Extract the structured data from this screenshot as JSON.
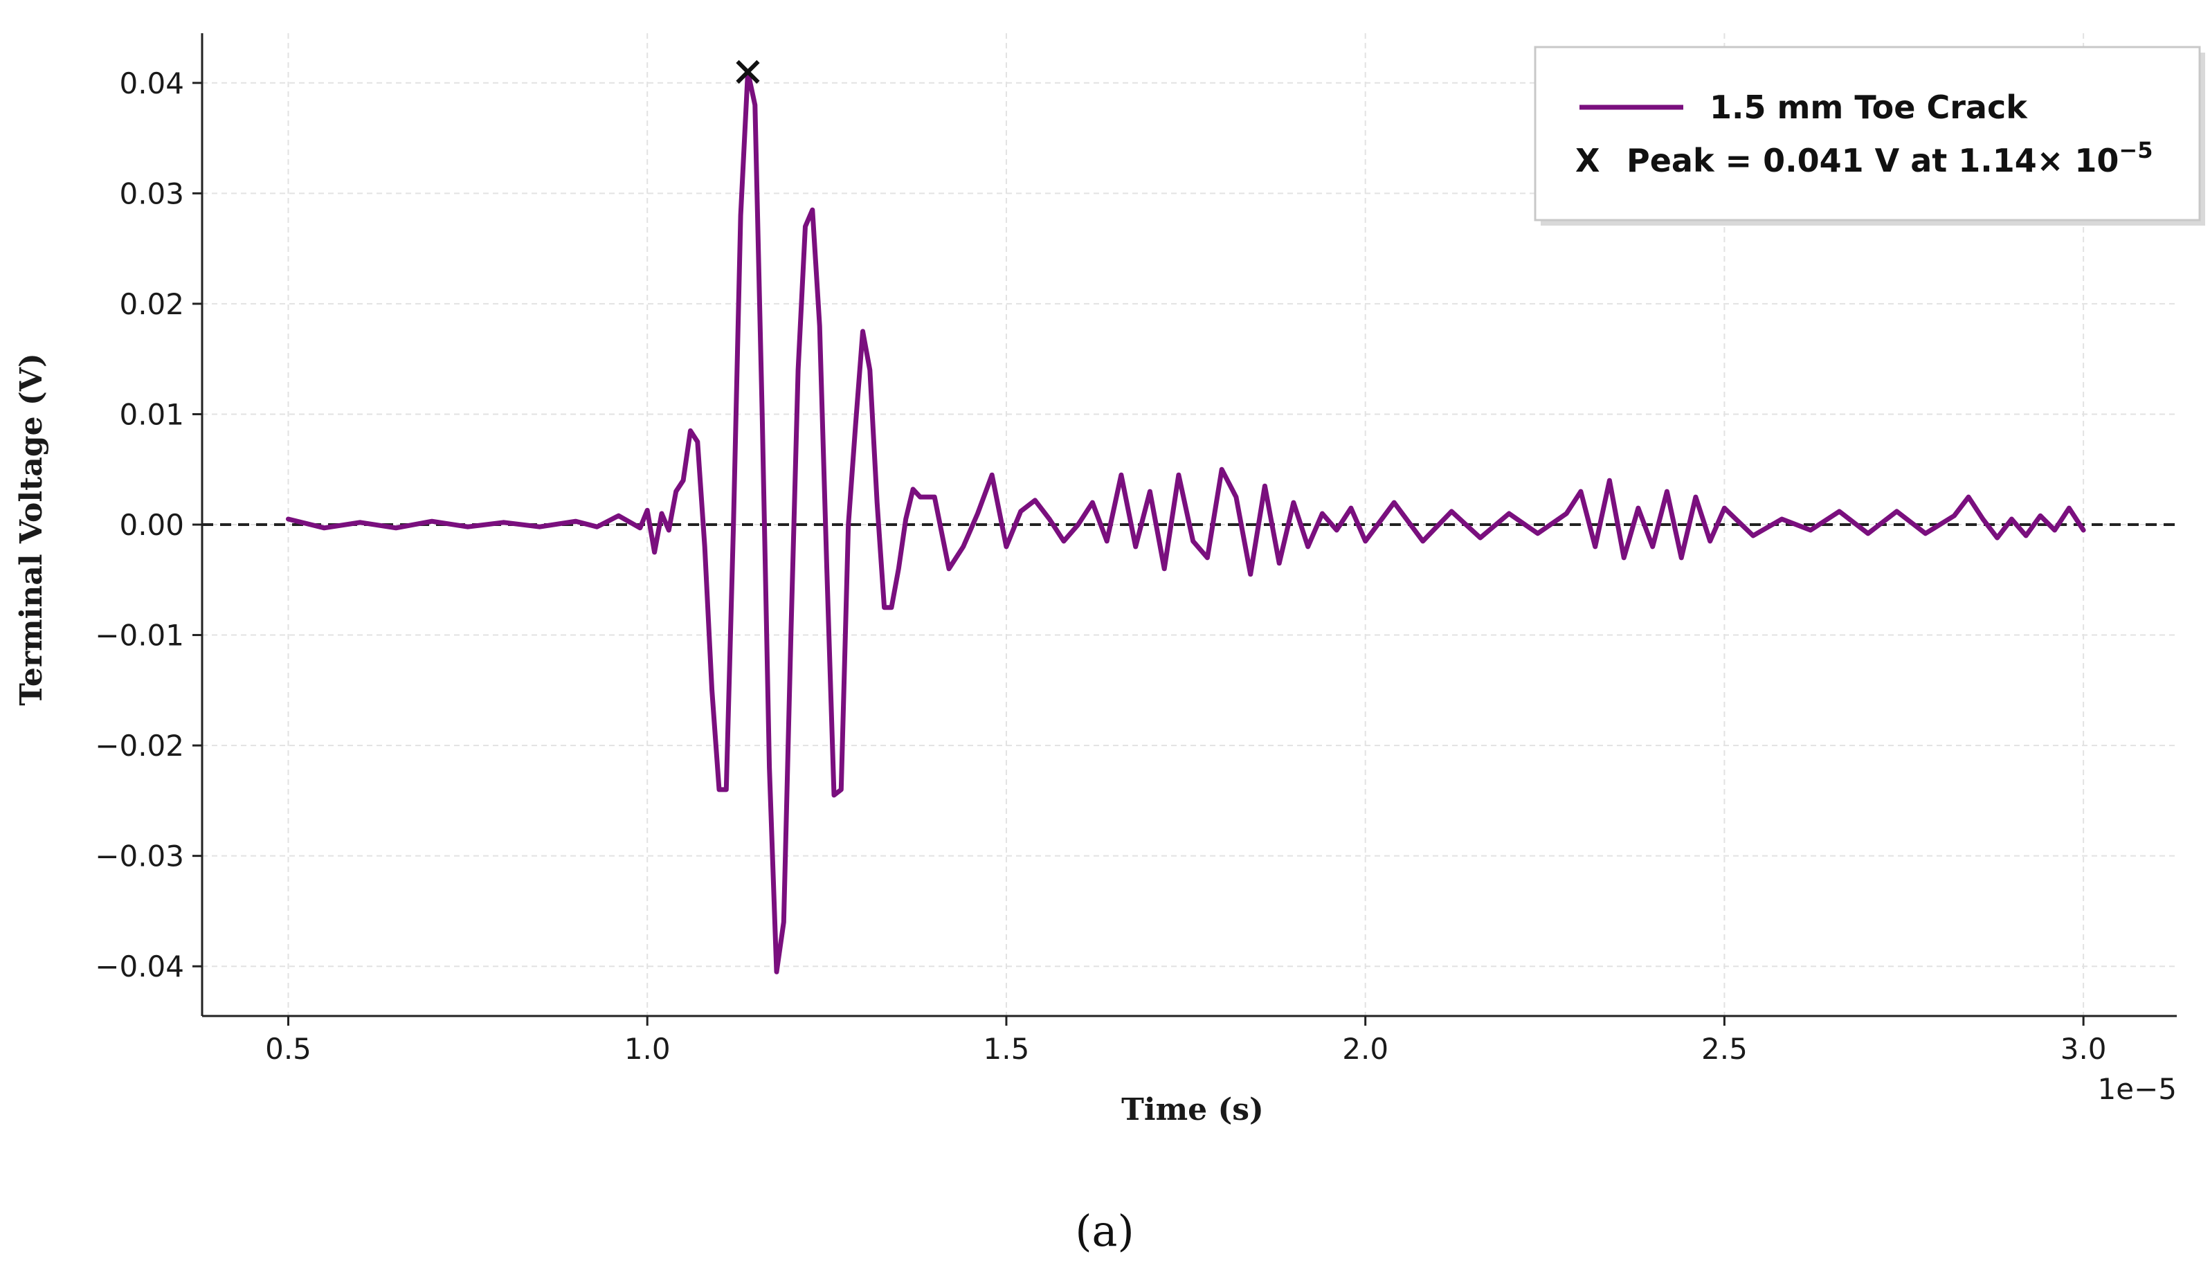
{
  "caption": "(a)",
  "chart_data": {
    "type": "line",
    "title": "",
    "xlabel": "Time (s)",
    "ylabel": "Terminal Voltage (V)",
    "x_offset_label": "1e−5",
    "x_scale": 1e-05,
    "xlim": [
      0.38,
      3.13
    ],
    "ylim": [
      -0.0445,
      0.0445
    ],
    "xticks": [
      0.5,
      1.0,
      1.5,
      2.0,
      2.5,
      3.0
    ],
    "xtick_labels": [
      "0.5",
      "1.0",
      "1.5",
      "2.0",
      "2.5",
      "3.0"
    ],
    "yticks": [
      0.04,
      0.03,
      0.02,
      0.01,
      0.0,
      -0.01,
      -0.02,
      -0.03,
      -0.04
    ],
    "ytick_labels": [
      "0.04",
      "0.03",
      "0.02",
      "0.01",
      "0.00",
      "−0.01",
      "−0.02",
      "−0.03",
      "−0.04"
    ],
    "grid": true,
    "legend_position": "top-right",
    "zero_line": {
      "y": 0,
      "style": "dashed",
      "color": "#222222"
    },
    "colors": {
      "series": "#7a0f7e",
      "marker": "#111111"
    },
    "series": [
      {
        "name": "1.5 mm Toe Crack",
        "x": [
          0.5,
          0.55,
          0.6,
          0.65,
          0.7,
          0.75,
          0.8,
          0.85,
          0.9,
          0.93,
          0.96,
          0.99,
          1.0,
          1.01,
          1.02,
          1.03,
          1.04,
          1.05,
          1.06,
          1.07,
          1.08,
          1.09,
          1.1,
          1.11,
          1.12,
          1.13,
          1.14,
          1.15,
          1.16,
          1.17,
          1.18,
          1.19,
          1.2,
          1.21,
          1.22,
          1.23,
          1.24,
          1.25,
          1.26,
          1.27,
          1.28,
          1.29,
          1.3,
          1.31,
          1.32,
          1.33,
          1.34,
          1.35,
          1.36,
          1.37,
          1.38,
          1.4,
          1.42,
          1.44,
          1.46,
          1.48,
          1.5,
          1.52,
          1.54,
          1.56,
          1.58,
          1.6,
          1.62,
          1.64,
          1.66,
          1.68,
          1.7,
          1.72,
          1.74,
          1.76,
          1.78,
          1.8,
          1.82,
          1.84,
          1.86,
          1.88,
          1.9,
          1.92,
          1.94,
          1.96,
          1.98,
          2.0,
          2.04,
          2.08,
          2.12,
          2.16,
          2.2,
          2.24,
          2.28,
          2.3,
          2.32,
          2.34,
          2.36,
          2.38,
          2.4,
          2.42,
          2.44,
          2.46,
          2.48,
          2.5,
          2.54,
          2.58,
          2.62,
          2.66,
          2.7,
          2.74,
          2.78,
          2.82,
          2.84,
          2.86,
          2.88,
          2.9,
          2.92,
          2.94,
          2.96,
          2.98,
          3.0
        ],
        "values": [
          0.0005,
          -0.0003,
          0.0002,
          -0.0003,
          0.0003,
          -0.0002,
          0.0002,
          -0.0002,
          0.0003,
          -0.0002,
          0.0008,
          -0.0003,
          0.0013,
          -0.0025,
          0.001,
          -0.0005,
          0.003,
          0.004,
          0.0085,
          0.0075,
          -0.002,
          -0.015,
          -0.024,
          -0.024,
          0.0,
          0.028,
          0.041,
          0.038,
          0.01,
          -0.022,
          -0.0405,
          -0.036,
          -0.01,
          0.014,
          0.027,
          0.0285,
          0.018,
          -0.004,
          -0.0245,
          -0.024,
          0.0,
          0.009,
          0.0175,
          0.014,
          0.002,
          -0.0075,
          -0.0075,
          -0.004,
          0.0005,
          0.0032,
          0.0025,
          0.0025,
          -0.004,
          -0.002,
          0.001,
          0.0045,
          -0.002,
          0.0012,
          0.0022,
          0.0005,
          -0.0015,
          0.0,
          0.002,
          -0.0015,
          0.0045,
          -0.002,
          0.003,
          -0.004,
          0.0045,
          -0.0015,
          -0.003,
          0.005,
          0.0025,
          -0.0045,
          0.0035,
          -0.0035,
          0.002,
          -0.002,
          0.001,
          -0.0005,
          0.0015,
          -0.0015,
          0.002,
          -0.0015,
          0.0012,
          -0.0012,
          0.001,
          -0.0008,
          0.001,
          0.003,
          -0.002,
          0.004,
          -0.003,
          0.0015,
          -0.002,
          0.003,
          -0.003,
          0.0025,
          -0.0015,
          0.0015,
          -0.001,
          0.0005,
          -0.0005,
          0.0012,
          -0.0008,
          0.0012,
          -0.0008,
          0.0008,
          0.0025,
          0.0005,
          -0.0012,
          0.0005,
          -0.001,
          0.0008,
          -0.0005,
          0.0015,
          -0.0005
        ]
      }
    ],
    "peak": {
      "x": 1.14,
      "y": 0.041,
      "marker": "X"
    },
    "legend": [
      {
        "kind": "line",
        "label": "1.5 mm Toe Crack"
      },
      {
        "kind": "marker",
        "symbol": "X",
        "label": "Peak = 0.041 V at 1.14× 10",
        "exponent": "−5"
      }
    ]
  }
}
